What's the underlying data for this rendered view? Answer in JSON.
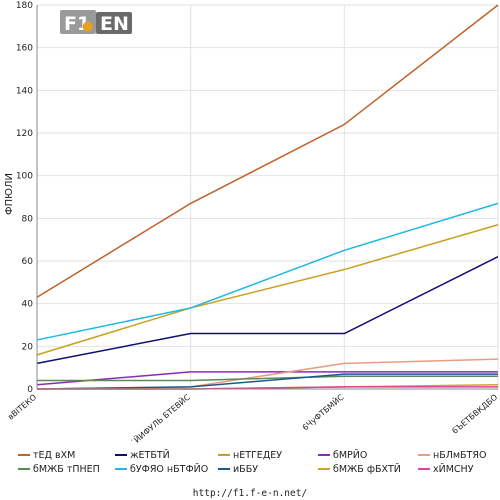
{
  "chart_data": {
    "type": "line",
    "categories": [
      "вВITEКО",
      "˙ЙИФУЛЬ БТЕВЙС",
      "6ЧуФТБМЙС",
      "6ЪЕТБВКДБО"
    ],
    "ylabel": "ФПЮЛИ",
    "ylim": [
      0,
      180
    ],
    "yticks": [
      0,
      20,
      40,
      60,
      80,
      100,
      120,
      140,
      160,
      180
    ],
    "grid": true,
    "legend_position": "bottom",
    "series": [
      {
        "name": "тЕД вХМ",
        "color": "#c0622a",
        "values": [
          43,
          87,
          124,
          180
        ]
      },
      {
        "name": "жЕТБТЙ",
        "color": "#101070",
        "values": [
          12,
          26,
          26,
          62
        ]
      },
      {
        "name": "нЕТГЕДЕУ",
        "color": "#c8a020",
        "values": [
          16,
          38,
          56,
          77
        ]
      },
      {
        "name": "бМРЙО",
        "color": "#8a2ab8",
        "values": [
          2,
          8,
          8,
          8
        ]
      },
      {
        "name": "нБЛмБТЯО",
        "color": "#e89c82",
        "values": [
          0,
          1,
          12,
          14
        ]
      },
      {
        "name": "бМЖБ тПНЕП",
        "color": "#5a8a5a",
        "values": [
          4,
          4,
          6,
          6
        ]
      },
      {
        "name": "бУФЯО нБТФЙО",
        "color": "#20b8e0",
        "values": [
          23,
          38,
          65,
          87
        ]
      },
      {
        "name": "иББУ",
        "color": "#1a5a8a",
        "values": [
          0,
          1,
          7,
          7
        ]
      },
      {
        "name": "бМЖБ фБХТЙ",
        "color": "#d0a418",
        "values": [
          0,
          0,
          1,
          2
        ]
      },
      {
        "name": "хЙМСНУ",
        "color": "#e040a0",
        "values": [
          0,
          0,
          1,
          1
        ]
      }
    ]
  },
  "logo": {
    "text": "F1 EN"
  },
  "footer": {
    "source": "http://f1.f-e-n.net/"
  }
}
